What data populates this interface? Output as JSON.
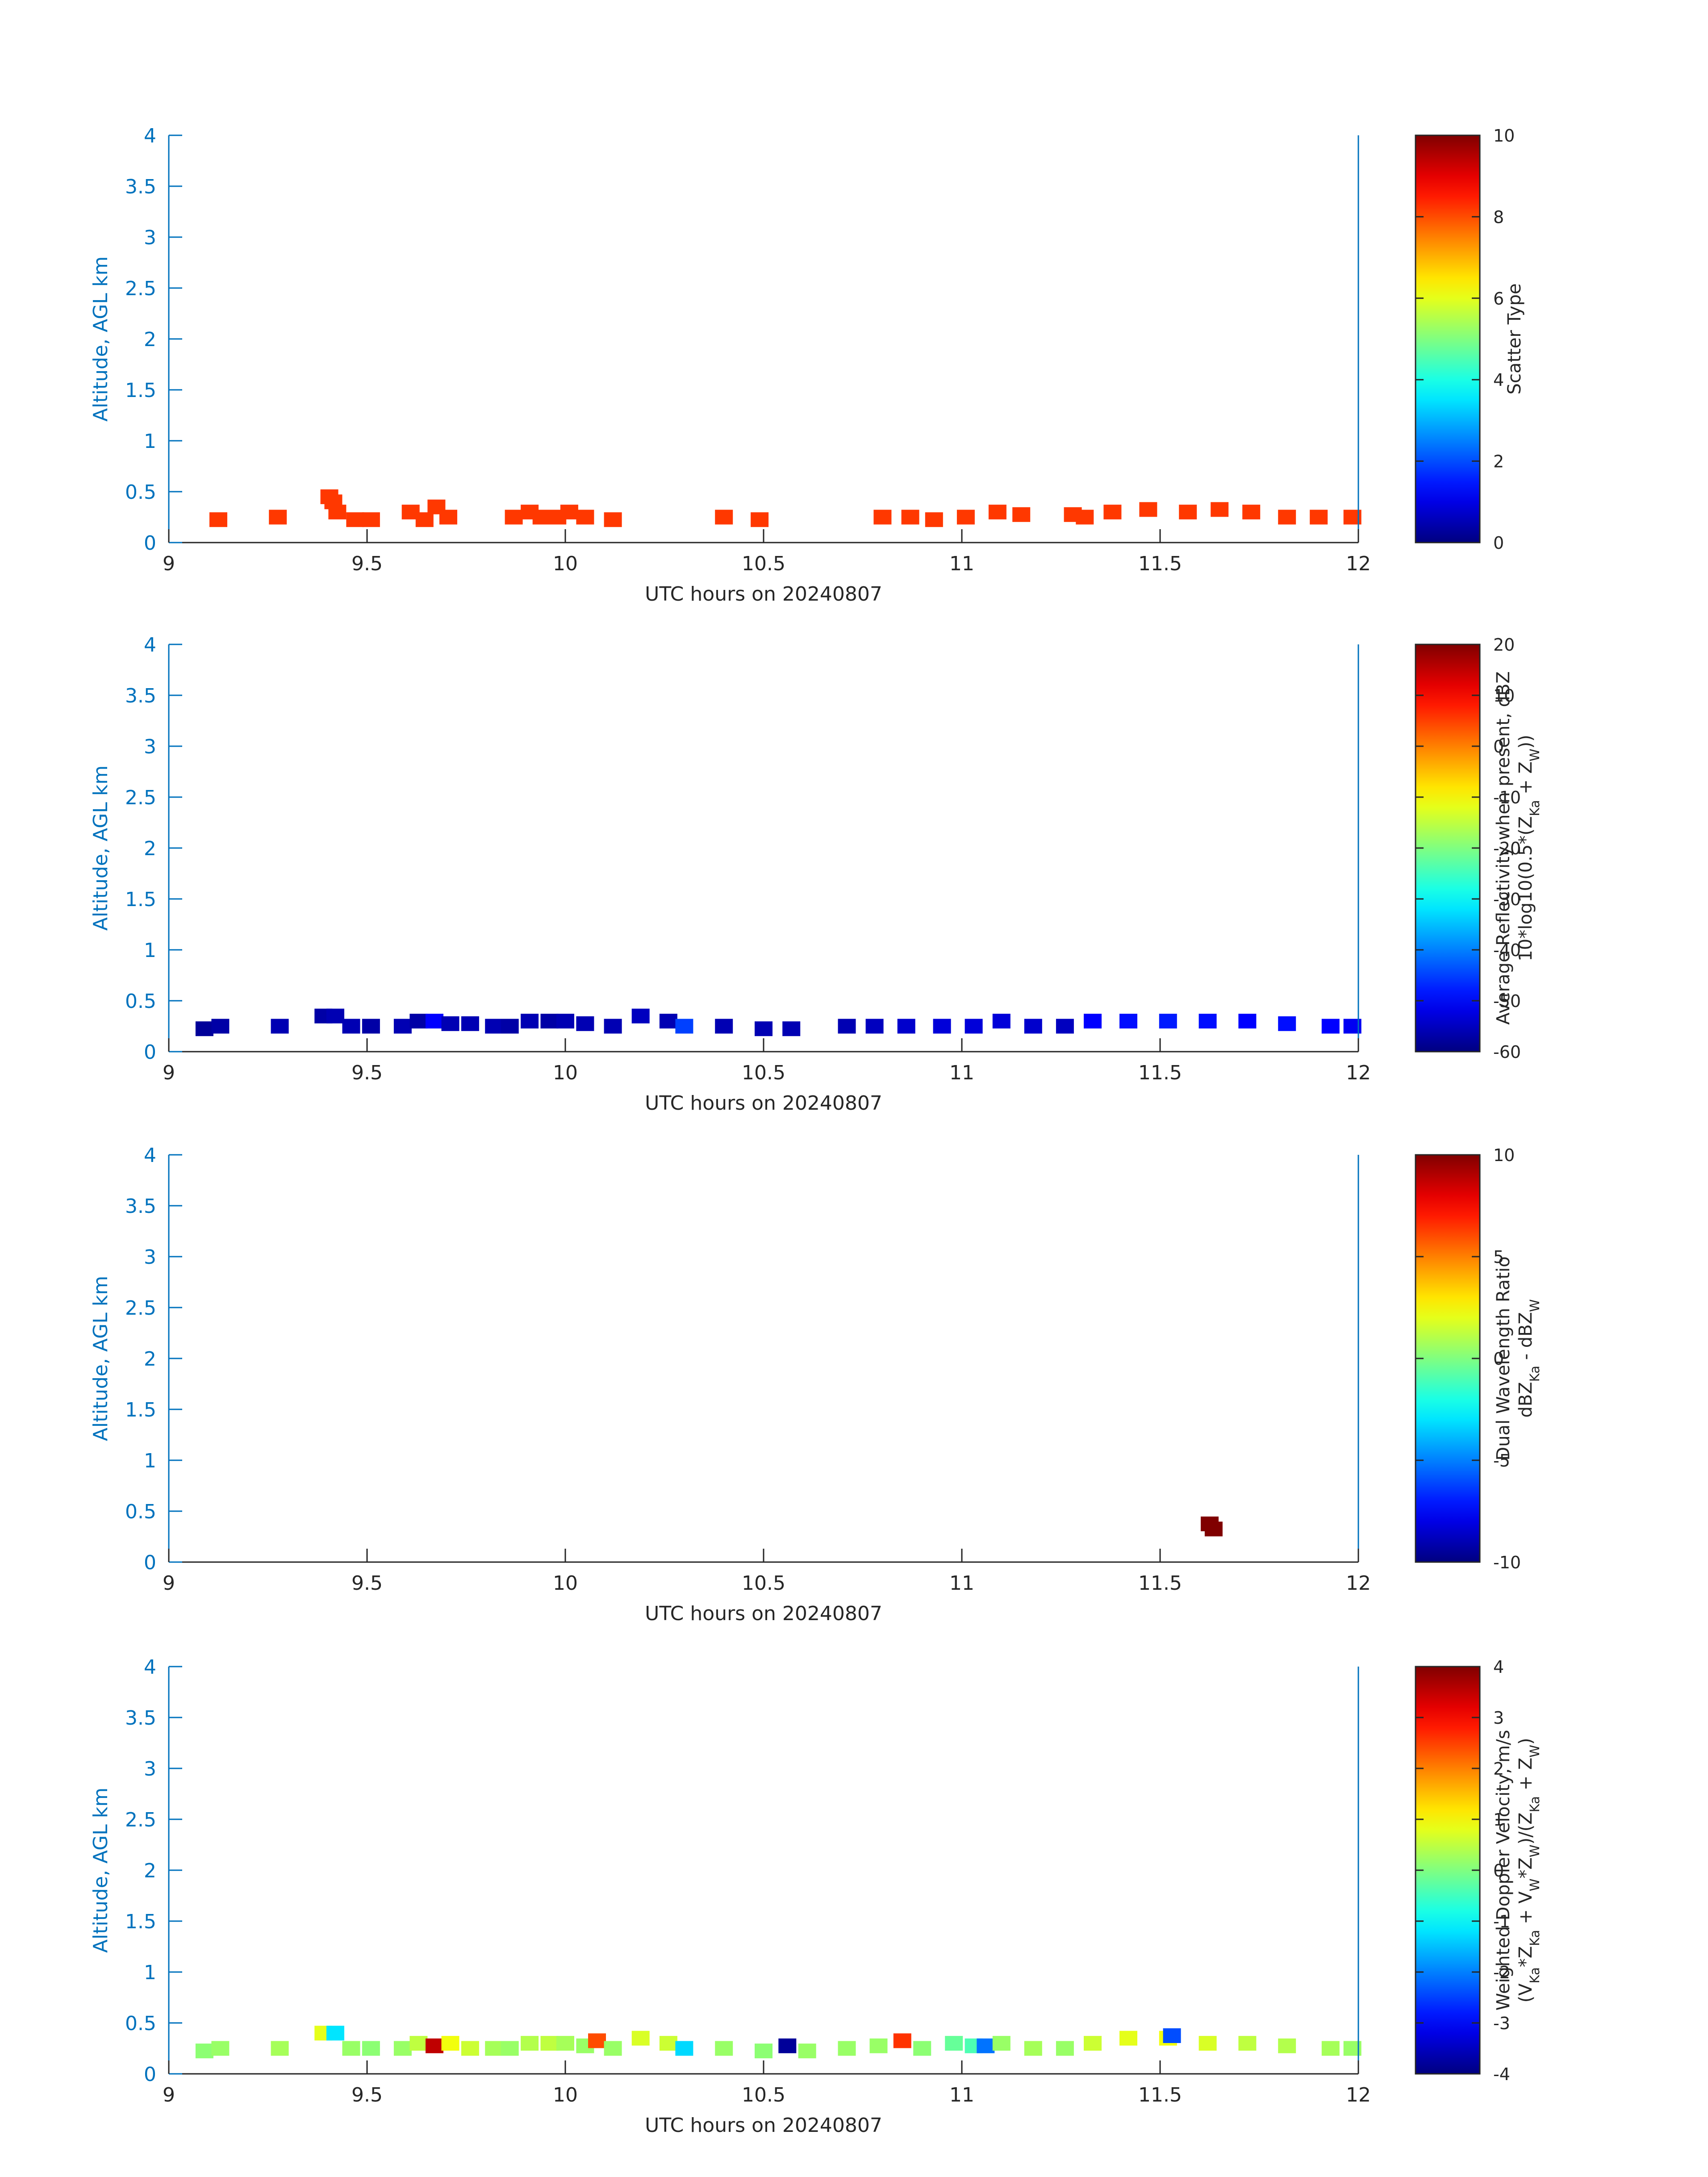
{
  "figure": {
    "colors": {
      "axis_left": "#0072BD",
      "axis_bottom": "#262626",
      "frame_right": "#0072BD"
    }
  },
  "chart_data": [
    {
      "type": "heatmap",
      "title": "",
      "xlabel": "UTC hours on 20240807",
      "ylabel": "Altitude, AGL km",
      "xlim": [
        9,
        12
      ],
      "ylim": [
        0,
        4
      ],
      "xticks": [
        "9",
        "9.5",
        "10",
        "10.5",
        "11",
        "11.5",
        "12"
      ],
      "yticks": [
        "0",
        "0.5",
        "1",
        "1.5",
        "2",
        "2.5",
        "3",
        "3.5",
        "4"
      ],
      "colormap": "jet",
      "colorbar": {
        "label_lines": [
          "Scatter Type"
        ],
        "range": [
          0,
          10
        ],
        "ticks": [
          "0",
          "2",
          "4",
          "6",
          "8",
          "10"
        ]
      },
      "cells": [
        [
          9.125,
          0.225,
          8.2
        ],
        [
          9.275,
          0.25,
          8.2
        ],
        [
          9.405,
          0.45,
          8.2
        ],
        [
          9.415,
          0.4,
          8.2
        ],
        [
          9.425,
          0.3,
          8.2
        ],
        [
          9.47,
          0.225,
          8.2
        ],
        [
          9.51,
          0.225,
          8.2
        ],
        [
          9.61,
          0.3,
          8.2
        ],
        [
          9.645,
          0.225,
          8.2
        ],
        [
          9.675,
          0.35,
          8.2
        ],
        [
          9.705,
          0.25,
          8.2
        ],
        [
          9.87,
          0.25,
          8.2
        ],
        [
          9.91,
          0.3,
          8.2
        ],
        [
          9.94,
          0.25,
          8.2
        ],
        [
          9.98,
          0.25,
          8.2
        ],
        [
          10.01,
          0.3,
          8.2
        ],
        [
          10.05,
          0.25,
          8.2
        ],
        [
          10.12,
          0.225,
          8.2
        ],
        [
          10.4,
          0.25,
          8.2
        ],
        [
          10.49,
          0.225,
          8.2
        ],
        [
          10.8,
          0.25,
          8.2
        ],
        [
          10.87,
          0.25,
          8.2
        ],
        [
          10.93,
          0.225,
          8.2
        ],
        [
          11.01,
          0.25,
          8.2
        ],
        [
          11.09,
          0.3,
          8.2
        ],
        [
          11.15,
          0.275,
          8.2
        ],
        [
          11.28,
          0.275,
          8.2
        ],
        [
          11.31,
          0.25,
          8.2
        ],
        [
          11.38,
          0.3,
          8.2
        ],
        [
          11.47,
          0.325,
          8.2
        ],
        [
          11.57,
          0.3,
          8.2
        ],
        [
          11.65,
          0.325,
          8.2
        ],
        [
          11.73,
          0.3,
          8.2
        ],
        [
          11.82,
          0.25,
          8.2
        ],
        [
          11.9,
          0.25,
          8.2
        ],
        [
          11.985,
          0.25,
          8.2
        ]
      ]
    },
    {
      "type": "heatmap",
      "title": "",
      "xlabel": "UTC hours on 20240807",
      "ylabel": "Altitude, AGL km",
      "xlim": [
        9,
        12
      ],
      "ylim": [
        0,
        4
      ],
      "xticks": [
        "9",
        "9.5",
        "10",
        "10.5",
        "11",
        "11.5",
        "12"
      ],
      "yticks": [
        "0",
        "0.5",
        "1",
        "1.5",
        "2",
        "2.5",
        "3",
        "3.5",
        "4"
      ],
      "colormap": "jet",
      "colorbar": {
        "label_lines": [
          "Average Reflectivity when present, dBZ",
          "10*log10(0.5*(Z_Ka + Z_W))"
        ],
        "range": [
          -60,
          20
        ],
        "ticks": [
          "-60",
          "-50",
          "-40",
          "-30",
          "-20",
          "-10",
          "0",
          "10",
          "20"
        ]
      },
      "cells": [
        [
          9.09,
          0.225,
          -58
        ],
        [
          9.13,
          0.25,
          -57
        ],
        [
          9.28,
          0.25,
          -56
        ],
        [
          9.39,
          0.35,
          -57
        ],
        [
          9.42,
          0.35,
          -56
        ],
        [
          9.46,
          0.25,
          -56
        ],
        [
          9.51,
          0.25,
          -57
        ],
        [
          9.59,
          0.25,
          -56
        ],
        [
          9.63,
          0.3,
          -57
        ],
        [
          9.67,
          0.3,
          -50
        ],
        [
          9.71,
          0.275,
          -56
        ],
        [
          9.76,
          0.275,
          -56
        ],
        [
          9.82,
          0.25,
          -56
        ],
        [
          9.86,
          0.25,
          -57
        ],
        [
          9.91,
          0.3,
          -56
        ],
        [
          9.96,
          0.3,
          -57
        ],
        [
          10.0,
          0.3,
          -56
        ],
        [
          10.05,
          0.275,
          -56
        ],
        [
          10.12,
          0.25,
          -56
        ],
        [
          10.19,
          0.35,
          -55
        ],
        [
          10.26,
          0.3,
          -56
        ],
        [
          10.3,
          0.25,
          -45
        ],
        [
          10.4,
          0.25,
          -56
        ],
        [
          10.5,
          0.225,
          -56
        ],
        [
          10.57,
          0.225,
          -56
        ],
        [
          10.71,
          0.25,
          -56
        ],
        [
          10.78,
          0.25,
          -55
        ],
        [
          10.86,
          0.25,
          -54
        ],
        [
          10.95,
          0.25,
          -53
        ],
        [
          11.03,
          0.25,
          -53
        ],
        [
          11.1,
          0.3,
          -53
        ],
        [
          11.18,
          0.25,
          -54
        ],
        [
          11.26,
          0.25,
          -55
        ],
        [
          11.33,
          0.3,
          -50
        ],
        [
          11.42,
          0.3,
          -49
        ],
        [
          11.52,
          0.3,
          -48
        ],
        [
          11.62,
          0.3,
          -49
        ],
        [
          11.72,
          0.3,
          -50
        ],
        [
          11.82,
          0.275,
          -49
        ],
        [
          11.93,
          0.25,
          -50
        ],
        [
          11.985,
          0.25,
          -51
        ]
      ]
    },
    {
      "type": "heatmap",
      "title": "",
      "xlabel": "UTC hours on 20240807",
      "ylabel": "Altitude, AGL km",
      "xlim": [
        9,
        12
      ],
      "ylim": [
        0,
        4
      ],
      "xticks": [
        "9",
        "9.5",
        "10",
        "10.5",
        "11",
        "11.5",
        "12"
      ],
      "yticks": [
        "0",
        "0.5",
        "1",
        "1.5",
        "2",
        "2.5",
        "3",
        "3.5",
        "4"
      ],
      "colormap": "jet",
      "colorbar": {
        "label_lines": [
          "Dual Wavelength Ratio",
          "dBZ_Ka - dBZ_W"
        ],
        "range": [
          -10,
          10
        ],
        "ticks": [
          "-10",
          "-5",
          "0",
          "5",
          "10"
        ]
      },
      "cells": [
        [
          11.625,
          0.375,
          10
        ],
        [
          11.635,
          0.325,
          10
        ]
      ]
    },
    {
      "type": "heatmap",
      "title": "",
      "xlabel": "UTC hours on 20240807",
      "ylabel": "Altitude, AGL km",
      "xlim": [
        9,
        12
      ],
      "ylim": [
        0,
        4
      ],
      "xticks": [
        "9",
        "9.5",
        "10",
        "10.5",
        "11",
        "11.5",
        "12"
      ],
      "yticks": [
        "0",
        "0.5",
        "1",
        "1.5",
        "2",
        "2.5",
        "3",
        "3.5",
        "4"
      ],
      "colormap": "jet",
      "colorbar": {
        "label_lines": [
          "Weighted Doppler Velocity, m/s",
          "(V_Ka*Z_Ka + V_W*Z_W)/(Z_Ka + Z_W)"
        ],
        "range": [
          -4,
          4
        ],
        "ticks": [
          "-4",
          "-3",
          "-2",
          "-1",
          "0",
          "1",
          "2",
          "3",
          "4"
        ]
      },
      "cells": [
        [
          9.09,
          0.225,
          0.1
        ],
        [
          9.13,
          0.25,
          0.2
        ],
        [
          9.28,
          0.25,
          0.3
        ],
        [
          9.39,
          0.4,
          0.8
        ],
        [
          9.42,
          0.4,
          -1.2
        ],
        [
          9.46,
          0.25,
          0.2
        ],
        [
          9.51,
          0.25,
          0.1
        ],
        [
          9.59,
          0.25,
          0.2
        ],
        [
          9.63,
          0.3,
          0.5
        ],
        [
          9.67,
          0.275,
          3.5
        ],
        [
          9.71,
          0.3,
          0.9
        ],
        [
          9.76,
          0.25,
          0.6
        ],
        [
          9.82,
          0.25,
          0.3
        ],
        [
          9.86,
          0.25,
          0.2
        ],
        [
          9.91,
          0.3,
          0.4
        ],
        [
          9.96,
          0.3,
          0.5
        ],
        [
          10.0,
          0.3,
          0.3
        ],
        [
          10.05,
          0.275,
          0.2
        ],
        [
          10.08,
          0.325,
          2.4
        ],
        [
          10.12,
          0.25,
          0.2
        ],
        [
          10.19,
          0.35,
          0.7
        ],
        [
          10.26,
          0.3,
          0.6
        ],
        [
          10.3,
          0.25,
          -1.3
        ],
        [
          10.4,
          0.25,
          0.2
        ],
        [
          10.5,
          0.225,
          0.1
        ],
        [
          10.56,
          0.275,
          -3.8
        ],
        [
          10.61,
          0.225,
          0.2
        ],
        [
          10.71,
          0.25,
          0.2
        ],
        [
          10.79,
          0.275,
          0.2
        ],
        [
          10.85,
          0.325,
          2.6
        ],
        [
          10.9,
          0.25,
          0.1
        ],
        [
          10.98,
          0.3,
          -0.2
        ],
        [
          11.03,
          0.275,
          -0.4
        ],
        [
          11.06,
          0.275,
          -2.1
        ],
        [
          11.1,
          0.3,
          0.2
        ],
        [
          11.18,
          0.25,
          0.3
        ],
        [
          11.26,
          0.25,
          0.2
        ],
        [
          11.33,
          0.3,
          0.6
        ],
        [
          11.42,
          0.35,
          0.8
        ],
        [
          11.52,
          0.35,
          0.9
        ],
        [
          11.53,
          0.375,
          -2.4
        ],
        [
          11.62,
          0.3,
          0.7
        ],
        [
          11.72,
          0.3,
          0.5
        ],
        [
          11.82,
          0.275,
          0.4
        ],
        [
          11.93,
          0.25,
          0.3
        ],
        [
          11.985,
          0.25,
          0.2
        ]
      ]
    }
  ]
}
